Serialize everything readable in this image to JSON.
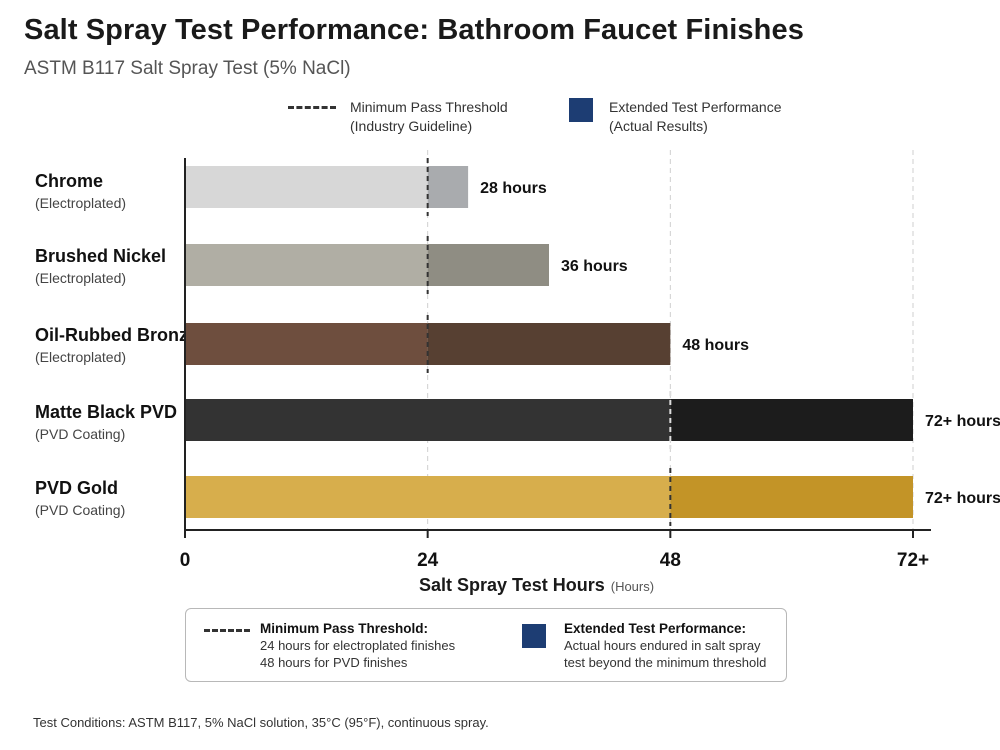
{
  "chart_data": {
    "type": "bar",
    "orientation": "horizontal",
    "title": "Salt Spray Test Performance: Bathroom Faucet Finishes",
    "subtitle": "ASTM B117 Salt Spray Test (5% NaCl)",
    "xlabel": "Salt Spray Test Hours",
    "xlabel_unit": "(Hours)",
    "xlim": [
      0,
      72
    ],
    "x_ticks": [
      {
        "value": 0,
        "label": "0"
      },
      {
        "value": 24,
        "label": "24"
      },
      {
        "value": 48,
        "label": "48"
      },
      {
        "value": 72,
        "label": "72+"
      }
    ],
    "grid": true,
    "legend_placement": "top",
    "categories": [
      {
        "name": "Chrome",
        "sub": "(Electroplated)",
        "value": 28,
        "label": "28 hours",
        "threshold": 24,
        "color_base": "#d7d7d7",
        "color_extended": "#a9abae"
      },
      {
        "name": "Brushed Nickel",
        "sub": "(Electroplated)",
        "value": 36,
        "label": "36 hours",
        "threshold": 24,
        "color_base": "#b0aea4",
        "color_extended": "#8f8d83"
      },
      {
        "name": "Oil-Rubbed Bronze",
        "sub": "(Electroplated)",
        "value": 48,
        "label": "48 hours",
        "threshold": 24,
        "color_base": "#6e4e3e",
        "color_extended": "#574032"
      },
      {
        "name": "Matte Black PVD",
        "sub": "(PVD Coating)",
        "value": 72,
        "label": "72+ hours",
        "threshold": 48,
        "color_base": "#333333",
        "color_extended": "#1c1c1c"
      },
      {
        "name": "PVD Gold",
        "sub": "(PVD Coating)",
        "value": 72,
        "label": "72+ hours",
        "threshold": 48,
        "color_base": "#d7ae4c",
        "color_extended": "#c39427"
      }
    ],
    "legend": [
      {
        "name": "Minimum Pass Threshold",
        "sub": "(Industry Guideline)",
        "style": "dashed-line"
      },
      {
        "name": "Extended Test Performance",
        "sub": "(Actual Results)",
        "color": "#1d3d73"
      }
    ]
  },
  "notes": {
    "threshold_title": "Minimum Pass Threshold:",
    "threshold_line1": "24 hours for electroplated finishes",
    "threshold_line2": "48 hours for PVD finishes",
    "extended_title": "Extended Test Performance:",
    "extended_line1": "Actual hours endured in salt spray",
    "extended_line2": "test beyond the minimum threshold"
  },
  "footnote": "Test Conditions: ASTM B117, 5% NaCl solution, 35°C (95°F), continuous spray."
}
